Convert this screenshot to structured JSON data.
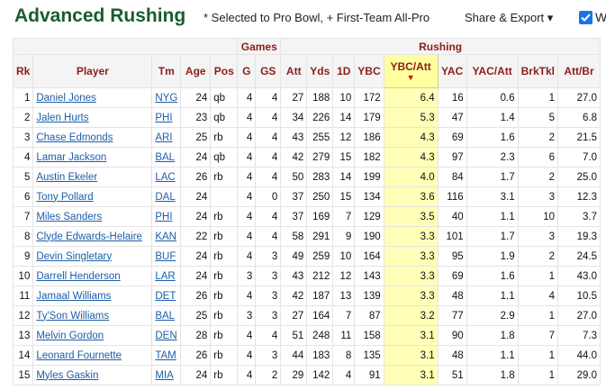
{
  "header": {
    "title": "Advanced Rushing",
    "note": "* Selected to Pro Bowl, + First-Team All-Pro",
    "share_export": "Share & Export ▾",
    "checkbox_label": "W"
  },
  "table": {
    "groups": [
      "Games",
      "Rushing"
    ],
    "columns": [
      "Rk",
      "Player",
      "Tm",
      "Age",
      "Pos",
      "G",
      "GS",
      "Att",
      "Yds",
      "1D",
      "YBC",
      "YBC/Att",
      "YAC",
      "YAC/Att",
      "BrkTkl",
      "Att/Br"
    ],
    "sort_indicator": "▼",
    "rows": [
      [
        "1",
        "Daniel Jones",
        "NYG",
        "24",
        "qb",
        "4",
        "4",
        "27",
        "188",
        "10",
        "172",
        "6.4",
        "16",
        "0.6",
        "1",
        "27.0"
      ],
      [
        "2",
        "Jalen Hurts",
        "PHI",
        "23",
        "qb",
        "4",
        "4",
        "34",
        "226",
        "14",
        "179",
        "5.3",
        "47",
        "1.4",
        "5",
        "6.8"
      ],
      [
        "3",
        "Chase Edmonds",
        "ARI",
        "25",
        "rb",
        "4",
        "4",
        "43",
        "255",
        "12",
        "186",
        "4.3",
        "69",
        "1.6",
        "2",
        "21.5"
      ],
      [
        "4",
        "Lamar Jackson",
        "BAL",
        "24",
        "qb",
        "4",
        "4",
        "42",
        "279",
        "15",
        "182",
        "4.3",
        "97",
        "2.3",
        "6",
        "7.0"
      ],
      [
        "5",
        "Austin Ekeler",
        "LAC",
        "26",
        "rb",
        "4",
        "4",
        "50",
        "283",
        "14",
        "199",
        "4.0",
        "84",
        "1.7",
        "2",
        "25.0"
      ],
      [
        "6",
        "Tony Pollard",
        "DAL",
        "24",
        null,
        "4",
        "0",
        "37",
        "250",
        "15",
        "134",
        "3.6",
        "116",
        "3.1",
        "3",
        "12.3"
      ],
      [
        "7",
        "Miles Sanders",
        "PHI",
        "24",
        "rb",
        "4",
        "4",
        "37",
        "169",
        "7",
        "129",
        "3.5",
        "40",
        "1.1",
        "10",
        "3.7"
      ],
      [
        "8",
        "Clyde Edwards-Helaire",
        "KAN",
        "22",
        "rb",
        "4",
        "4",
        "58",
        "291",
        "9",
        "190",
        "3.3",
        "101",
        "1.7",
        "3",
        "19.3"
      ],
      [
        "9",
        "Devin Singletary",
        "BUF",
        "24",
        "rb",
        "4",
        "3",
        "49",
        "259",
        "10",
        "164",
        "3.3",
        "95",
        "1.9",
        "2",
        "24.5"
      ],
      [
        "10",
        "Darrell Henderson",
        "LAR",
        "24",
        "rb",
        "3",
        "3",
        "43",
        "212",
        "12",
        "143",
        "3.3",
        "69",
        "1.6",
        "1",
        "43.0"
      ],
      [
        "11",
        "Jamaal Williams",
        "DET",
        "26",
        "rb",
        "4",
        "3",
        "42",
        "187",
        "13",
        "139",
        "3.3",
        "48",
        "1.1",
        "4",
        "10.5"
      ],
      [
        "12",
        "Ty'Son Williams",
        "BAL",
        "25",
        "rb",
        "3",
        "3",
        "27",
        "164",
        "7",
        "87",
        "3.2",
        "77",
        "2.9",
        "1",
        "27.0"
      ],
      [
        "13",
        "Melvin Gordon",
        "DEN",
        "28",
        "rb",
        "4",
        "4",
        "51",
        "248",
        "11",
        "158",
        "3.1",
        "90",
        "1.8",
        "7",
        "7.3"
      ],
      [
        "14",
        "Leonard Fournette",
        "TAM",
        "26",
        "rb",
        "4",
        "3",
        "44",
        "183",
        "8",
        "135",
        "3.1",
        "48",
        "1.1",
        "1",
        "44.0"
      ],
      [
        "15",
        "Myles Gaskin",
        "MIA",
        "24",
        "rb",
        "4",
        "2",
        "29",
        "142",
        "4",
        "91",
        "3.1",
        "51",
        "1.8",
        "1",
        "29.0"
      ]
    ]
  }
}
